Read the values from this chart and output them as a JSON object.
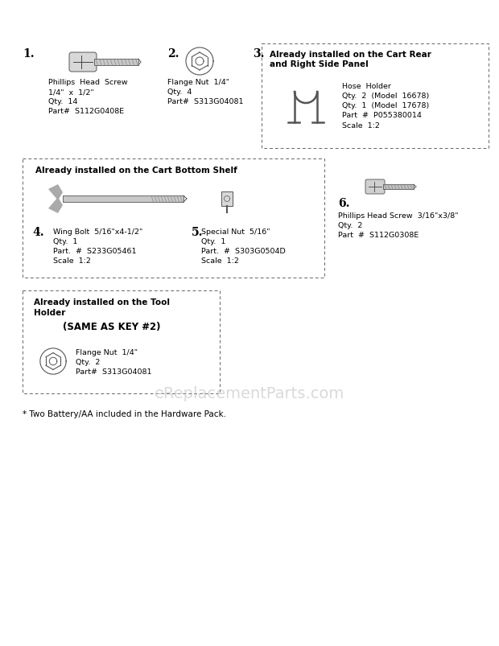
{
  "bg_color": "#ffffff",
  "item1": {
    "label": "1.",
    "desc": "Phillips  Head  Screw\n1/4\"  x  1/2\"\nQty.  14\nPart#  S112G0408E"
  },
  "item2": {
    "label": "2.",
    "desc": "Flange Nut  1/4\"\nQty.  4\nPart#  S313G04081"
  },
  "item3": {
    "label": "3.",
    "box_title": "Already installed on the Cart Rear\nand Right Side Panel",
    "desc": "Hose  Holder\nQty.  2  (Model  16678)\nQty.  1  (Model  17678)\nPart  #  P055380014\nScale  1:2"
  },
  "item4": {
    "label": "4.",
    "desc": "Wing Bolt  5/16\"x4-1/2\"\nQty.  1\nPart.  #  S233G05461\nScale  1:2"
  },
  "item5": {
    "label": "5.",
    "desc": "Special Nut  5/16\"\nQty.  1\nPart.  #  S303G0504D\nScale  1:2"
  },
  "item6": {
    "label": "6.",
    "desc": "Phillips Head Screw  3/16\"x3/8\"\nQty.  2\nPart  #  S112G0308E"
  },
  "box_bottom_title": "Already installed on the Cart Bottom Shelf",
  "box_tool_title": "Already installed on the Tool\nHolder",
  "box_tool_same": "(SAME AS KEY #2)",
  "box_tool_desc": "Flange Nut  1/4\"\nQty.  2\nPart#  S313G04081",
  "footnote": "* Two Battery/AA included in the Hardware Pack.",
  "watermark": "eReplacementParts.com"
}
